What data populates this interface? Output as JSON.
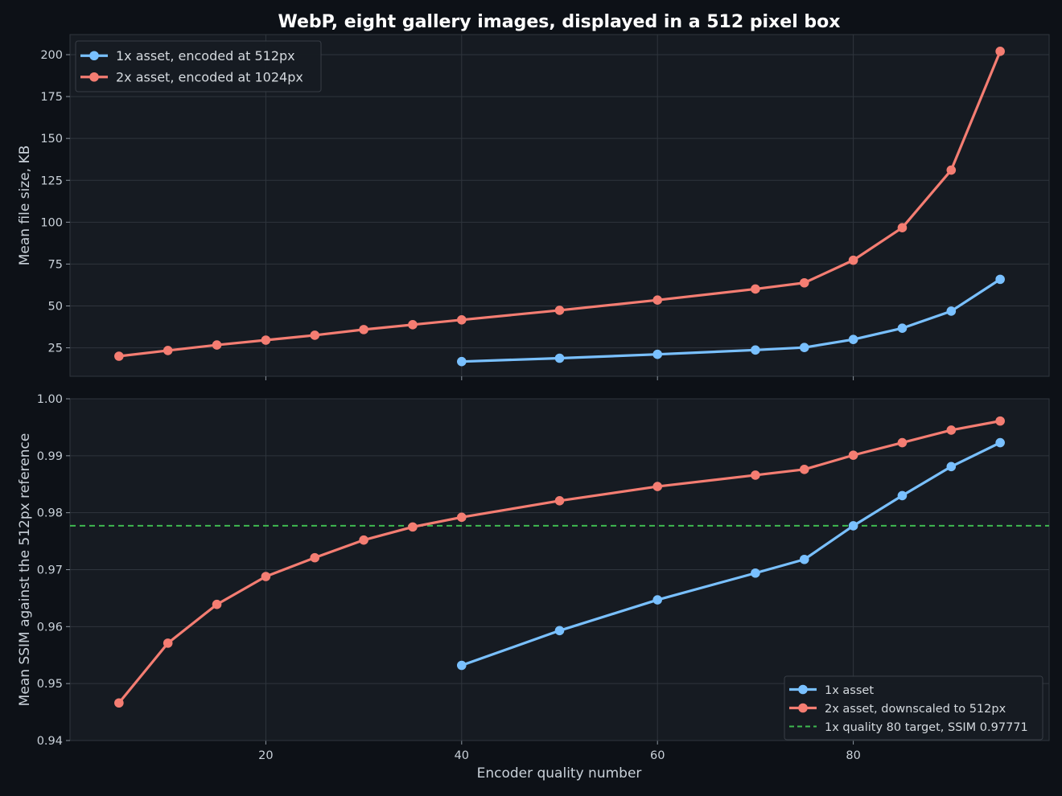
{
  "chart_data": {
    "title": "WebP, eight gallery images, displayed in a 512 pixel box",
    "xlabel": "Encoder quality number",
    "colors": {
      "one_x": "#79c0ff",
      "two_x": "#f47d72",
      "target": "#3fb950",
      "background": "#0d1117",
      "plot_background": "#161b22",
      "grid": "#2f353d"
    },
    "panels": [
      {
        "type": "line",
        "ylabel": "Mean file size, KB",
        "xlim": [
          0,
          100
        ],
        "ylim": [
          8,
          212
        ],
        "yticks": [
          25,
          50,
          75,
          100,
          125,
          150,
          175,
          200
        ],
        "grid": true,
        "legend_position": "top-left",
        "series": [
          {
            "name": "1x asset, encoded at 512px",
            "color": "#79c0ff",
            "x": [
              40,
              50,
              60,
              70,
              75,
              80,
              85,
              90,
              95
            ],
            "y": [
              16.8,
              18.8,
              21.1,
              23.7,
              25.2,
              30.0,
              36.7,
              46.9,
              65.9
            ]
          },
          {
            "name": "2x asset, encoded at 1024px",
            "color": "#f47d72",
            "x": [
              5,
              10,
              15,
              20,
              25,
              30,
              35,
              40,
              50,
              60,
              70,
              75,
              80,
              85,
              90,
              95
            ],
            "y": [
              20.0,
              23.4,
              26.7,
              29.6,
              32.5,
              35.9,
              38.8,
              41.7,
              47.4,
              53.5,
              60.1,
              63.8,
              77.3,
              96.7,
              131.1,
              202.0
            ]
          }
        ]
      },
      {
        "type": "line",
        "ylabel": "Mean SSIM against the 512px reference",
        "xlim": [
          0,
          100
        ],
        "ylim": [
          0.94,
          1.0
        ],
        "yticks": [
          "0.94",
          "0.95",
          "0.96",
          "0.97",
          "0.98",
          "0.99",
          "1.00"
        ],
        "xticks": [
          20,
          40,
          60,
          80
        ],
        "grid": true,
        "legend_position": "bottom-right",
        "series": [
          {
            "name": "1x asset",
            "color": "#79c0ff",
            "x": [
              40,
              50,
              60,
              70,
              75,
              80,
              85,
              90,
              95
            ],
            "y": [
              0.9532,
              0.9593,
              0.9647,
              0.9694,
              0.9718,
              0.9777,
              0.983,
              0.9881,
              0.9923
            ]
          },
          {
            "name": "2x asset, downscaled to 512px",
            "color": "#f47d72",
            "x": [
              5,
              10,
              15,
              20,
              25,
              30,
              35,
              40,
              50,
              60,
              70,
              75,
              80,
              85,
              90,
              95
            ],
            "y": [
              0.9466,
              0.9571,
              0.9639,
              0.9688,
              0.9721,
              0.9752,
              0.9775,
              0.9792,
              0.9821,
              0.9846,
              0.9866,
              0.9876,
              0.9901,
              0.9923,
              0.9945,
              0.9961
            ]
          }
        ],
        "reference_line": {
          "name": "1x quality 80 target, SSIM 0.97771",
          "y": 0.97771,
          "color": "#3fb950",
          "style": "dashed"
        }
      }
    ]
  }
}
